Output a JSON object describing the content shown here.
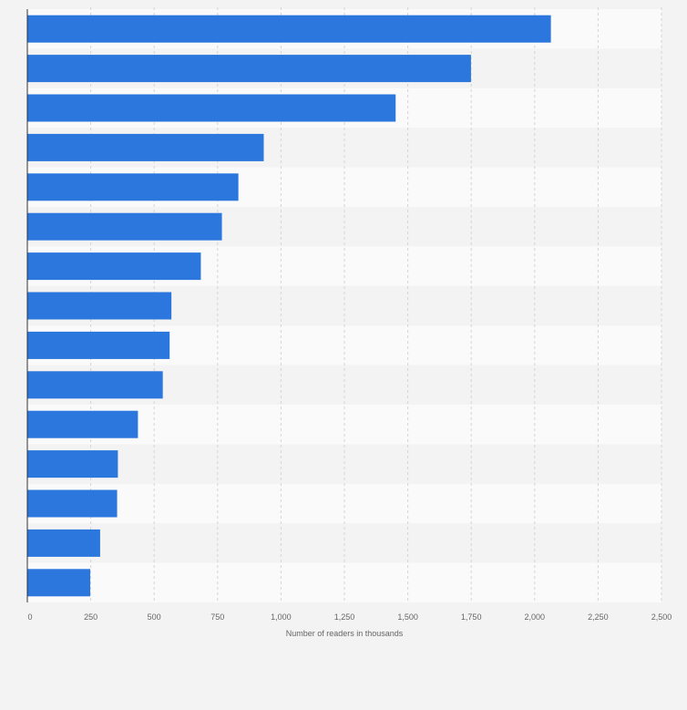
{
  "chart_data": {
    "type": "bar",
    "orientation": "horizontal",
    "title": "",
    "xlabel": "Number of readers in thousands",
    "ylabel": "",
    "xlim": [
      0,
      2500
    ],
    "x_ticks": [
      0,
      250,
      500,
      750,
      1000,
      1250,
      1500,
      1750,
      2000,
      2250,
      2500
    ],
    "x_tick_labels": [
      "0",
      "250",
      "500",
      "750",
      "1,000",
      "1,250",
      "1,500",
      "1,750",
      "2,000",
      "2,250",
      "2,500"
    ],
    "categories": [
      "",
      "",
      "",
      "",
      "",
      "",
      "",
      "",
      "",
      "",
      "",
      "",
      "",
      "",
      ""
    ],
    "values": [
      2064,
      1749,
      1452,
      932,
      832,
      767,
      684,
      568,
      561,
      534,
      436,
      357,
      354,
      287,
      248
    ],
    "grid": true,
    "legend": "none",
    "colors": {
      "bar": "#2b77de",
      "background": "#f3f3f3",
      "band_light": "#fafafa",
      "band_dark": "#f3f3f3",
      "grid": "#d4d4d4",
      "axis": "#333333",
      "text": "#666666"
    }
  }
}
